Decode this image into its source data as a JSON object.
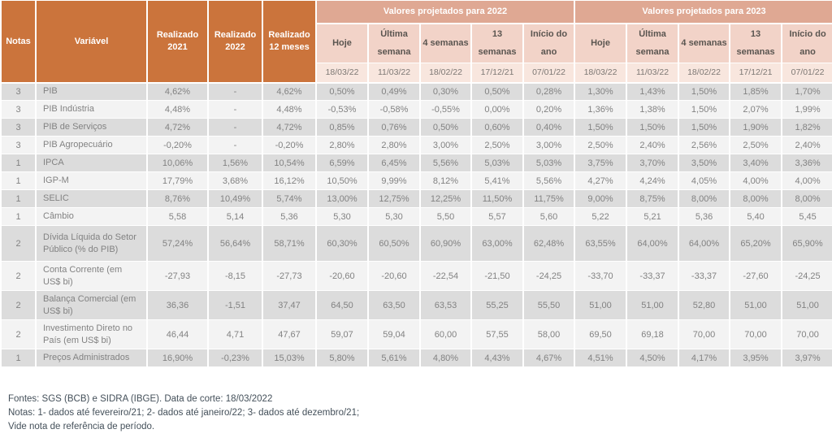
{
  "table": {
    "fixed_headers": [
      "Notas",
      "Variável",
      "Realizado 2021",
      "Realizado 2022",
      "Realizado 12 meses"
    ],
    "groups": [
      {
        "title": "Valores projetados para 2022",
        "subcolumns": [
          "Hoje",
          "Última semana",
          "4 semanas",
          "13 semanas",
          "Início do ano"
        ],
        "dates": [
          "18/03/22",
          "11/03/22",
          "18/02/22",
          "17/12/21",
          "07/01/22"
        ]
      },
      {
        "title": "Valores projetados para 2023",
        "subcolumns": [
          "Hoje",
          "Última semana",
          "4 semanas",
          "13 semanas",
          "Início do ano"
        ],
        "dates": [
          "18/03/22",
          "11/03/22",
          "18/02/22",
          "17/12/21",
          "07/01/22"
        ]
      }
    ],
    "rows": [
      {
        "nota": "3",
        "variavel": "PIB",
        "realizado": [
          "4,62%",
          "-",
          "4,62%"
        ],
        "proj_2022": [
          "0,50%",
          "0,49%",
          "0,30%",
          "0,50%",
          "0,28%"
        ],
        "proj_2023": [
          "1,30%",
          "1,43%",
          "1,50%",
          "1,85%",
          "1,70%"
        ]
      },
      {
        "nota": "3",
        "variavel": "PIB Indústria",
        "realizado": [
          "4,48%",
          "-",
          "4,48%"
        ],
        "proj_2022": [
          "-0,53%",
          "-0,58%",
          "-0,55%",
          "0,00%",
          "0,20%"
        ],
        "proj_2023": [
          "1,36%",
          "1,38%",
          "1,50%",
          "2,07%",
          "1,99%"
        ]
      },
      {
        "nota": "3",
        "variavel": "PIB de Serviços",
        "realizado": [
          "4,72%",
          "-",
          "4,72%"
        ],
        "proj_2022": [
          "0,85%",
          "0,76%",
          "0,50%",
          "0,60%",
          "0,40%"
        ],
        "proj_2023": [
          "1,50%",
          "1,50%",
          "1,50%",
          "1,90%",
          "1,82%"
        ]
      },
      {
        "nota": "3",
        "variavel": "PIB Agropecuário",
        "realizado": [
          "-0,20%",
          "-",
          "-0,20%"
        ],
        "proj_2022": [
          "2,80%",
          "2,80%",
          "3,00%",
          "2,50%",
          "3,00%"
        ],
        "proj_2023": [
          "2,50%",
          "2,40%",
          "2,56%",
          "2,50%",
          "2,40%"
        ]
      },
      {
        "nota": "1",
        "variavel": "IPCA",
        "realizado": [
          "10,06%",
          "1,56%",
          "10,54%"
        ],
        "proj_2022": [
          "6,59%",
          "6,45%",
          "5,56%",
          "5,03%",
          "5,03%"
        ],
        "proj_2023": [
          "3,75%",
          "3,70%",
          "3,50%",
          "3,40%",
          "3,36%"
        ]
      },
      {
        "nota": "1",
        "variavel": "IGP-M",
        "realizado": [
          "17,79%",
          "3,68%",
          "16,12%"
        ],
        "proj_2022": [
          "10,50%",
          "9,99%",
          "8,12%",
          "5,41%",
          "5,56%"
        ],
        "proj_2023": [
          "4,27%",
          "4,24%",
          "4,05%",
          "4,00%",
          "4,00%"
        ]
      },
      {
        "nota": "1",
        "variavel": "SELIC",
        "realizado": [
          "8,76%",
          "10,49%",
          "5,74%"
        ],
        "proj_2022": [
          "13,00%",
          "12,75%",
          "12,25%",
          "11,50%",
          "11,75%"
        ],
        "proj_2023": [
          "9,00%",
          "8,75%",
          "8,00%",
          "8,00%",
          "8,00%"
        ]
      },
      {
        "nota": "1",
        "variavel": "Câmbio",
        "realizado": [
          "5,58",
          "5,14",
          "5,36"
        ],
        "proj_2022": [
          "5,30",
          "5,30",
          "5,50",
          "5,57",
          "5,60"
        ],
        "proj_2023": [
          "5,22",
          "5,21",
          "5,36",
          "5,40",
          "5,45"
        ]
      },
      {
        "nota": "2",
        "variavel": "Dívida Líquida do Setor Público (% do PIB)",
        "realizado": [
          "57,24%",
          "56,64%",
          "58,71%"
        ],
        "proj_2022": [
          "60,30%",
          "60,50%",
          "60,90%",
          "63,00%",
          "62,48%"
        ],
        "proj_2023": [
          "63,55%",
          "64,00%",
          "64,00%",
          "65,20%",
          "65,90%"
        ]
      },
      {
        "nota": "2",
        "variavel": "Conta Corrente (em US$ bi)",
        "realizado": [
          "-27,93",
          "-8,15",
          "-27,73"
        ],
        "proj_2022": [
          "-20,60",
          "-20,60",
          "-22,54",
          "-21,50",
          "-24,25"
        ],
        "proj_2023": [
          "-33,70",
          "-33,37",
          "-33,37",
          "-27,60",
          "-24,25"
        ]
      },
      {
        "nota": "2",
        "variavel": "Balança Comercial (em US$ bi)",
        "realizado": [
          "36,36",
          "-1,51",
          "37,47"
        ],
        "proj_2022": [
          "64,50",
          "63,50",
          "63,53",
          "55,25",
          "55,50"
        ],
        "proj_2023": [
          "51,00",
          "51,00",
          "52,80",
          "51,00",
          "51,00"
        ]
      },
      {
        "nota": "2",
        "variavel": "Investimento Direto no País (em US$ bi)",
        "realizado": [
          "46,44",
          "4,71",
          "47,67"
        ],
        "proj_2022": [
          "59,07",
          "59,04",
          "60,00",
          "57,55",
          "58,00"
        ],
        "proj_2023": [
          "69,50",
          "69,18",
          "70,00",
          "70,00",
          "70,00"
        ]
      },
      {
        "nota": "1",
        "variavel": "Preços Administrados",
        "realizado": [
          "16,90%",
          "-0,23%",
          "15,03%"
        ],
        "proj_2022": [
          "5,80%",
          "5,61%",
          "4,80%",
          "4,43%",
          "4,67%"
        ],
        "proj_2023": [
          "4,51%",
          "4,50%",
          "4,17%",
          "3,95%",
          "3,97%"
        ]
      }
    ]
  },
  "footer": {
    "line1": "Fontes: SGS (BCB) e  SIDRA (IBGE). Data de corte: 18/03/2022",
    "line2": "Notas:  1- dados até fevereiro/21; 2- dados até janeiro/22; 3- dados até dezembro/21;",
    "line3": "Vide nota de referência de período."
  },
  "colors": {
    "header_orange": "#cb743c",
    "band_salmon": "#dfa893",
    "subheader_pink": "#f2d3c8",
    "date_row_pink": "#f8e6de",
    "row_stripe_dark": "#dcdcdc",
    "row_stripe_light": "#f3f3f3",
    "footnote_text": "#44505a"
  }
}
